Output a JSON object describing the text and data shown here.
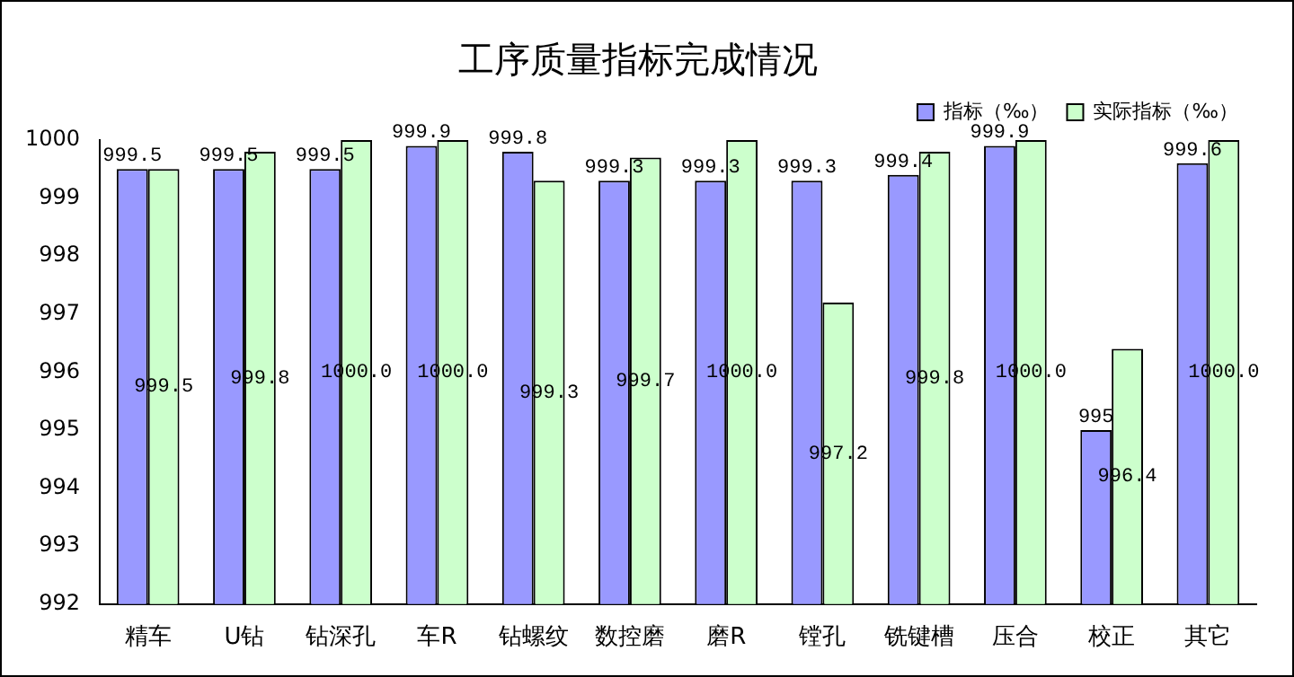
{
  "chart_data": {
    "type": "bar",
    "title": "工序质量指标完成情况",
    "categories": [
      "精车",
      "U钻",
      "钻深孔",
      "车R",
      "钻螺纹",
      "数控磨",
      "磨R",
      "镗孔",
      "铣键槽",
      "压合",
      "校正",
      "其它"
    ],
    "series": [
      {
        "name": "指标（‰）",
        "color": "#9999ff",
        "values": [
          999.5,
          999.5,
          999.5,
          999.9,
          999.8,
          999.3,
          999.3,
          999.3,
          999.4,
          999.9,
          995,
          999.6
        ],
        "value_labels": [
          "999.5",
          "999.5",
          "999.5",
          "999.9",
          "999.8",
          "999.3",
          "999.3",
          "999.3",
          "999.4",
          "999.9",
          "995",
          "999.6"
        ]
      },
      {
        "name": "实际指标（‰）",
        "color": "#ccffcc",
        "values": [
          999.5,
          999.8,
          1000.0,
          1000.0,
          999.3,
          999.7,
          1000.0,
          997.2,
          999.8,
          1000.0,
          996.4,
          1000.0
        ],
        "value_labels": [
          "999.5",
          "999.8",
          "1000.0",
          "1000.0",
          "999.3",
          "999.7",
          "1000.0",
          "997.2",
          "999.8",
          "1000.0",
          "996.4",
          "1000.0"
        ]
      }
    ],
    "ylim": [
      992,
      1000
    ],
    "yticks": [
      992,
      993,
      994,
      995,
      996,
      997,
      998,
      999,
      1000
    ],
    "grid": false,
    "legend": "top right"
  }
}
